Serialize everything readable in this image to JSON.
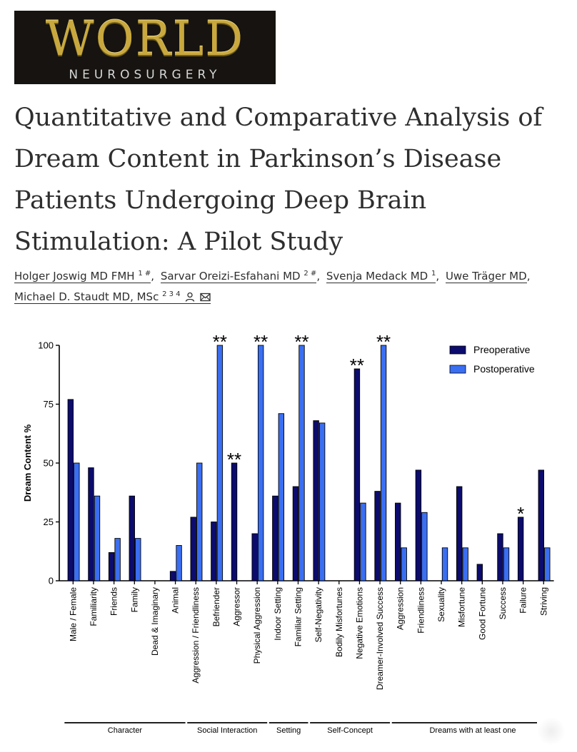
{
  "journal": {
    "logo_word": "WORLD",
    "logo_sub": "NEUROSURGERY"
  },
  "article": {
    "title": "Quantitative and Comparative Analysis of Dream Content in Parkinson’s Disease Patients Undergoing Deep Brain Stimulation: A Pilot Study",
    "authors": [
      {
        "name": "Holger Joswig MD FMH",
        "sup": "1 #"
      },
      {
        "name": "Sarvar Oreizi-Esfahani MD",
        "sup": "2 #"
      },
      {
        "name": "Svenja Medack MD",
        "sup": "1"
      },
      {
        "name": "Uwe Träger MD",
        "sup": ""
      },
      {
        "name": "Michael D. Staudt MD, MSc",
        "sup": "2 3 4"
      }
    ],
    "icons": [
      "person-icon",
      "envelope-icon"
    ]
  },
  "chart_data": {
    "type": "bar",
    "ylabel": "Dream Content %",
    "ylim": [
      0,
      100
    ],
    "yticks": [
      0,
      25,
      50,
      75,
      100
    ],
    "categories": [
      "Male / Female",
      "Familiarity",
      "Friends",
      "Family",
      "Dead & Imaginary",
      "Animal",
      "Aggression / Friendliness",
      "Befriender",
      "Aggressor",
      "Physical Aggression",
      "Indoor Setting",
      "Familiar Setting",
      "Self-Negativity",
      "Bodily Misfortunes",
      "Negative Emotions",
      "Dreamer-Involved Success",
      "Aggression",
      "Friendliness",
      "Sexuality",
      "Misfortune",
      "Good Fortune",
      "Success",
      "Failure",
      "Striving"
    ],
    "series": [
      {
        "name": "Preoperative",
        "color": "#0c0c6e",
        "values": [
          77,
          48,
          12,
          36,
          0,
          4,
          27,
          25,
          50,
          20,
          36,
          40,
          68,
          0,
          90,
          38,
          33,
          47,
          0,
          40,
          7,
          20,
          27,
          47
        ]
      },
      {
        "name": "Postoperative",
        "color": "#3b6ff2",
        "values": [
          50,
          36,
          18,
          18,
          0,
          15,
          50,
          100,
          0,
          100,
          71,
          100,
          67,
          0,
          33,
          100,
          14,
          29,
          14,
          14,
          0,
          14,
          0,
          14
        ]
      }
    ],
    "annotations": [
      {
        "category": "Befriender",
        "series": "Postoperative",
        "text": "**"
      },
      {
        "category": "Aggressor",
        "series": "Preoperative",
        "text": "**"
      },
      {
        "category": "Physical Aggression",
        "series": "Postoperative",
        "text": "**"
      },
      {
        "category": "Familiar Setting",
        "series": "Postoperative",
        "text": "**"
      },
      {
        "category": "Negative Emotions",
        "series": "Preoperative",
        "text": "**"
      },
      {
        "category": "Dreamer-Involved Success",
        "series": "Postoperative",
        "text": "**"
      },
      {
        "category": "Failure",
        "series": "Preoperative",
        "text": "*"
      }
    ],
    "groups": [
      {
        "label": "Character",
        "from": 0,
        "to": 5
      },
      {
        "label": "Social Interaction",
        "from": 6,
        "to": 9
      },
      {
        "label": "Setting",
        "from": 10,
        "to": 11
      },
      {
        "label": "Self-Concept",
        "from": 12,
        "to": 15
      },
      {
        "label": "Dreams with at least one",
        "from": 16,
        "to": 23
      }
    ],
    "legend_position": "top-right",
    "grid": false
  }
}
